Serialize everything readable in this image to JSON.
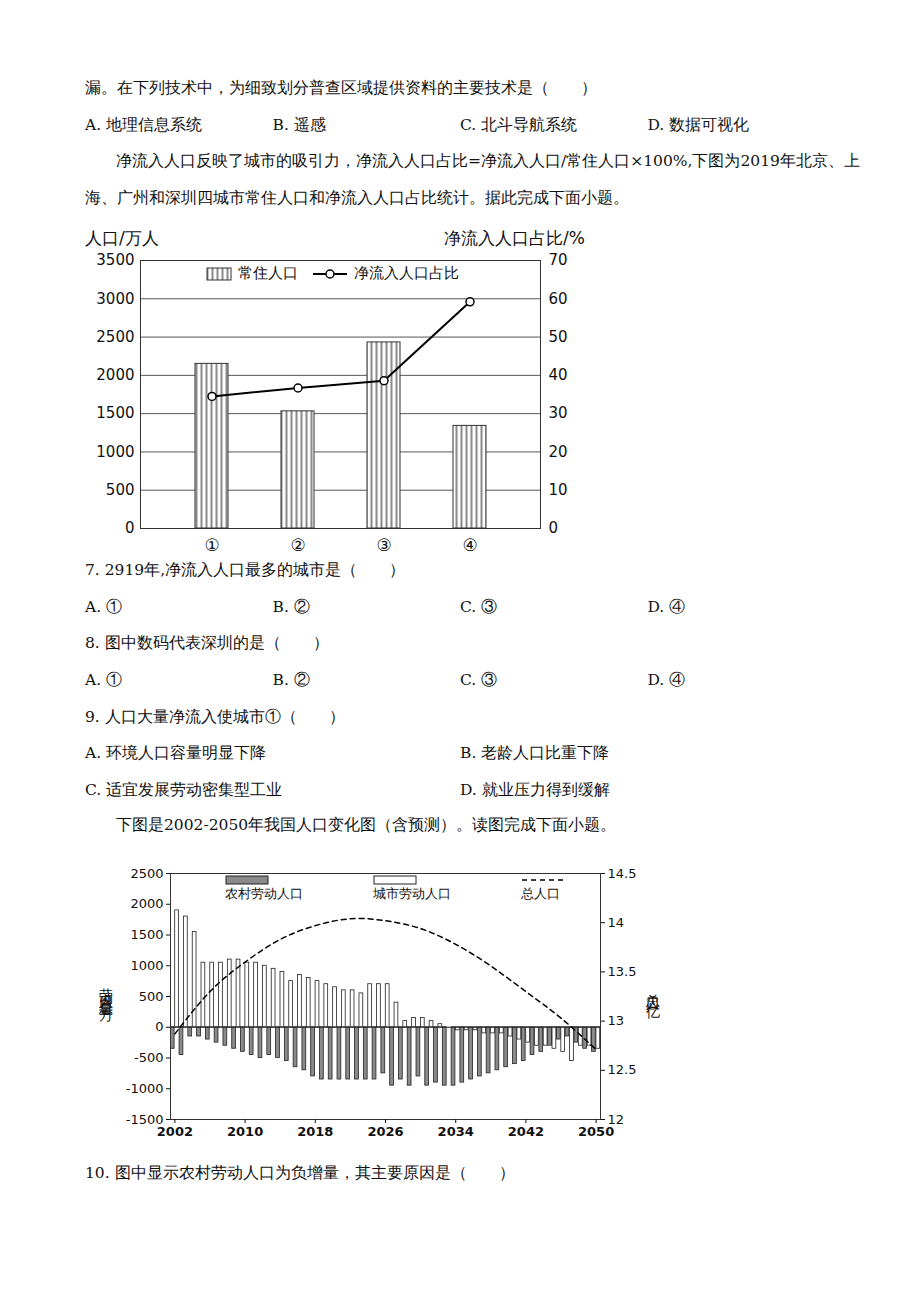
{
  "fragment": {
    "stem": "漏。在下列技术中，为细致划分普查区域提供资料的主要技术是（　　）",
    "options": [
      "A. 地理信息系统",
      "B. 遥感",
      "C. 北斗导航系统",
      "D. 数据可视化"
    ]
  },
  "passage1": "净流入人口反映了城市的吸引力，净流入人口占比=净流入人口/常住人口×100%,下图为2019年北京、上海、广州和深圳四城市常住人口和净流入人口占比统计。据此完成下面小题。",
  "chart_data": [
    {
      "type": "bar",
      "categories": [
        "①",
        "②",
        "③",
        "④"
      ],
      "ylabel": "人口/万人",
      "y2label": "净流入人口占比/%",
      "ylim": [
        0,
        3500
      ],
      "yticks": [
        0,
        500,
        1000,
        1500,
        2000,
        2500,
        3000,
        3500
      ],
      "y2lim": [
        0,
        70
      ],
      "y2ticks": [
        0,
        10,
        20,
        30,
        40,
        50,
        60,
        70
      ],
      "grid": true,
      "legend": "top",
      "series": [
        {
          "name": "常住人口",
          "type": "bar",
          "color": "#8a8a8a",
          "values": [
            2150,
            1530,
            2430,
            1340
          ]
        },
        {
          "name": "净流入人口占比",
          "type": "line",
          "axis": "y2",
          "color": "#000000",
          "marker": "circle",
          "values": [
            34.5,
            36.7,
            38.6,
            59.2
          ]
        }
      ]
    },
    {
      "type": "bar",
      "x": [
        2002,
        2003,
        2004,
        2005,
        2006,
        2007,
        2008,
        2009,
        2010,
        2011,
        2012,
        2013,
        2014,
        2015,
        2016,
        2017,
        2018,
        2019,
        2020,
        2021,
        2022,
        2023,
        2024,
        2025,
        2026,
        2027,
        2028,
        2029,
        2030,
        2031,
        2032,
        2033,
        2034,
        2035,
        2036,
        2037,
        2038,
        2039,
        2040,
        2041,
        2042,
        2043,
        2044,
        2045,
        2046,
        2047,
        2048,
        2049,
        2050
      ],
      "xlim": [
        2001.5,
        2050.5
      ],
      "xticks": [
        2002,
        2010,
        2018,
        2026,
        2034,
        2042,
        2050
      ],
      "ylabel": "劳动人口总量（万）",
      "y2label": "总人口（亿）",
      "ylim": [
        -1500,
        2500
      ],
      "yticks": [
        -1500,
        -1000,
        -500,
        0,
        500,
        1000,
        1500,
        2000,
        2500
      ],
      "y2lim": [
        12,
        14.5
      ],
      "y2ticks": [
        12,
        12.5,
        13,
        13.5,
        14,
        14.5
      ],
      "grid": false,
      "legend": "top",
      "series": [
        {
          "name": "农村劳动人口",
          "type": "bar",
          "color": "#8a8a8a",
          "values": [
            -350,
            -450,
            -150,
            -150,
            -200,
            -250,
            -300,
            -350,
            -400,
            -450,
            -500,
            -450,
            -500,
            -550,
            -650,
            -700,
            -800,
            -850,
            -850,
            -850,
            -850,
            -850,
            -850,
            -850,
            -750,
            -950,
            -850,
            -950,
            -800,
            -950,
            -900,
            -950,
            -950,
            -900,
            -850,
            -800,
            -750,
            -700,
            -650,
            -600,
            -550,
            -450,
            -400,
            -300,
            -200,
            -150,
            -250,
            -350,
            -400
          ]
        },
        {
          "name": "城市劳动人口",
          "type": "bar",
          "color": "#ffffff",
          "values": [
            1900,
            1800,
            1550,
            1050,
            1050,
            1050,
            1100,
            1100,
            1050,
            1050,
            1000,
            950,
            900,
            750,
            850,
            800,
            750,
            700,
            650,
            600,
            600,
            550,
            700,
            700,
            700,
            400,
            100,
            150,
            150,
            100,
            50,
            0,
            -50,
            -50,
            -50,
            -100,
            -100,
            -100,
            -150,
            -200,
            -250,
            -300,
            -300,
            -350,
            -400,
            -550,
            -300,
            -300,
            -350
          ]
        },
        {
          "name": "总人口",
          "type": "line",
          "axis": "y2",
          "color": "#000000",
          "line_style": "dashed",
          "x": [
            2002,
            2006,
            2010,
            2014,
            2018,
            2022,
            2026,
            2030,
            2034,
            2038,
            2042,
            2046,
            2050
          ],
          "values": [
            12.87,
            13.3,
            13.6,
            13.83,
            13.97,
            14.04,
            14.02,
            13.94,
            13.78,
            13.56,
            13.3,
            13.03,
            12.71
          ]
        }
      ]
    }
  ],
  "questions1": [
    {
      "stem": "7. 2919年,净流入人口最多的城市是（　　）",
      "options": [
        "A. ①",
        "B. ②",
        "C. ③",
        "D. ④"
      ]
    },
    {
      "stem": "8. 图中数码代表深圳的是（　　）",
      "options": [
        "A. ①",
        "B. ②",
        "C. ③",
        "D. ④"
      ]
    },
    {
      "stem": "9. 人口大量净流入使城市①（　　）",
      "options": [
        "A. 环境人口容量明显下降",
        "B. 老龄人口比重下降",
        "C. 适宜发展劳动密集型工业",
        "D. 就业压力得到缓解"
      ]
    }
  ],
  "passage2": "下图是2002-2050年我国人口变化图（含预测）。读图完成下面小题。",
  "questions2": [
    {
      "stem": "10. 图中显示农村劳动人口为负增量，其主要原因是（　　）"
    }
  ]
}
